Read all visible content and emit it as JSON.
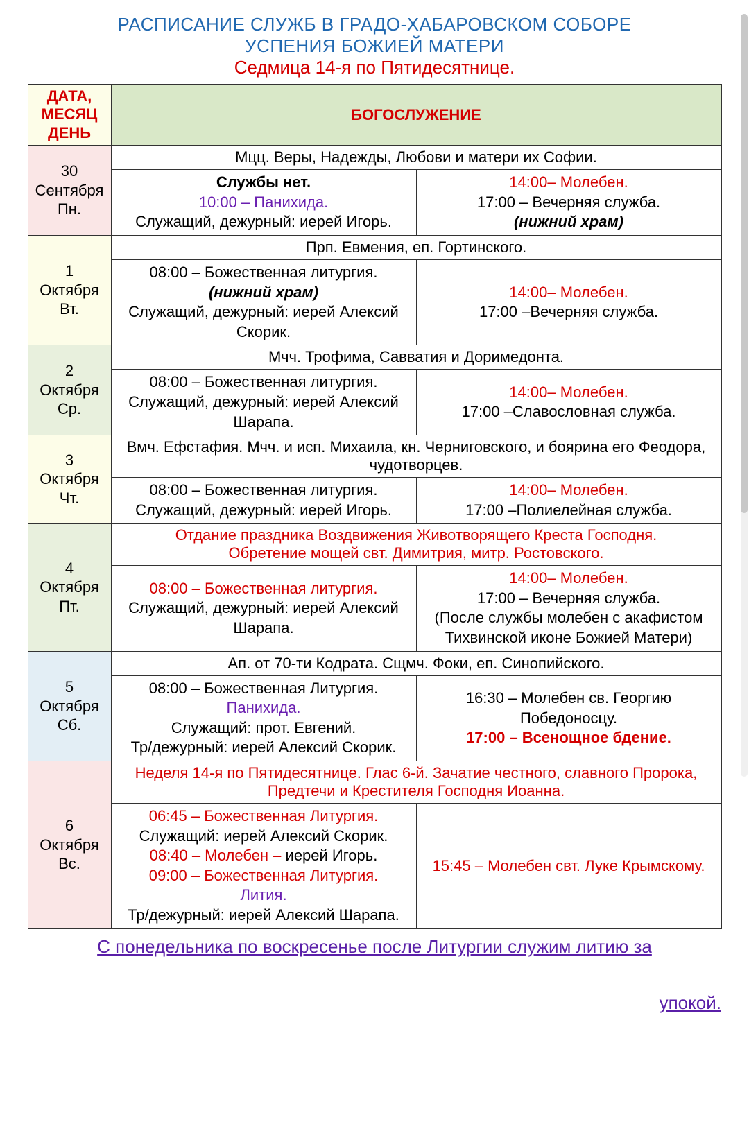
{
  "colors": {
    "title_blue": "#2068b0",
    "red": "#d40000",
    "purple": "#6a1fb0",
    "link_purple": "#5a1fa8",
    "bg_pink": "#fae6e6",
    "bg_cream": "#fdfde8",
    "bg_green": "#e8f0dd",
    "bg_blue": "#e3eef5",
    "header_green": "#d9e8c8",
    "border": "#333333"
  },
  "title": {
    "line1": "РАСПИСАНИЕ СЛУЖБ В ГРАДО-ХАБАРОВСКОМ СОБОРЕ",
    "line2": "УСПЕНИЯ БОЖИЕЙ МАТЕРИ",
    "line3": "Седмица 14-я по Пятидесятнице."
  },
  "header": {
    "date_col": "ДАТА, МЕСЯЦ ДЕНЬ",
    "service_col": "БОГОСЛУЖЕНИЕ"
  },
  "rows": [
    {
      "date_bg": "bg-pink",
      "date_lines": [
        "30",
        "Сентября",
        "Пн."
      ],
      "feast": "Мцц. Веры, Надежды, Любови и матери их Софии.",
      "left": [
        {
          "text": "Службы нет.",
          "cls": "bold"
        },
        {
          "text": "10:00 – Панихида.",
          "cls": "purple"
        },
        {
          "text": "Служащий, дежурный: иерей Игорь.",
          "cls": ""
        }
      ],
      "right": [
        {
          "text": "14:00– Молебен.",
          "cls": "red"
        },
        {
          "text": "17:00 – Вечерняя служба.",
          "cls": ""
        },
        {
          "text": "(нижний храм)",
          "cls": "bold italic"
        }
      ]
    },
    {
      "date_bg": "bg-cream",
      "date_lines": [
        "1",
        "Октября",
        "Вт."
      ],
      "feast": "Прп. Евмения, еп. Гортинского.",
      "left": [
        {
          "text": "08:00 – Божественная литургия.",
          "cls": ""
        },
        {
          "text": "(нижний храм)",
          "cls": "bold italic"
        },
        {
          "text": "Служащий, дежурный: иерей Алексий Скорик.",
          "cls": ""
        }
      ],
      "right": [
        {
          "text": "14:00– Молебен.",
          "cls": "red"
        },
        {
          "text": "17:00 –Вечерняя служба.",
          "cls": ""
        }
      ]
    },
    {
      "date_bg": "bg-green",
      "date_lines": [
        "2",
        "Октября",
        "Ср."
      ],
      "feast": "Мчч. Трофима, Савватия и Доримедонта.",
      "left": [
        {
          "text": "08:00 – Божественная литургия.",
          "cls": ""
        },
        {
          "text": "Служащий, дежурный: иерей Алексий Шарапа.",
          "cls": ""
        }
      ],
      "right": [
        {
          "text": "14:00– Молебен.",
          "cls": "red"
        },
        {
          "text": "17:00 –Славословная служба.",
          "cls": ""
        }
      ]
    },
    {
      "date_bg": "bg-cream",
      "date_lines": [
        "3",
        "Октября",
        "Чт."
      ],
      "feast": "Вмч. Ефстафия. Мчч. и исп. Михаила, кн. Черниговского, и боярина его Феодора, чудотворцев.",
      "left": [
        {
          "text": "08:00 – Божественная литургия.",
          "cls": ""
        },
        {
          "text": "Служащий, дежурный: иерей Игорь.",
          "cls": ""
        }
      ],
      "right": [
        {
          "text": "14:00– Молебен.",
          "cls": "red"
        },
        {
          "text": "17:00 –Полиелейная служба.",
          "cls": ""
        }
      ]
    },
    {
      "date_bg": "bg-green",
      "date_lines": [
        "4",
        "Октября",
        "Пт."
      ],
      "feast_red": true,
      "feast": "Отдание праздника Воздвижения Животворящего Креста Господня.\nОбретение мощей свт. Димитрия, митр. Ростовского.",
      "left": [
        {
          "text": "08:00 – Божественная литургия.",
          "cls": "red"
        },
        {
          "text": "Служащий, дежурный: иерей Алексий Шарапа.",
          "cls": ""
        }
      ],
      "right": [
        {
          "text": "14:00– Молебен.",
          "cls": "red"
        },
        {
          "text": "17:00 – Вечерняя служба.",
          "cls": ""
        },
        {
          "text": "(После службы молебен с акафистом Тихвинской иконе Божией Матери)",
          "cls": ""
        }
      ]
    },
    {
      "date_bg": "bg-blue",
      "date_lines": [
        "5",
        "Октября",
        "Сб."
      ],
      "feast": "Ап. от 70-ти Кодрата. Сщмч. Фоки, еп. Синопийского.",
      "left": [
        {
          "text": "08:00 – Божественная Литургия.",
          "cls": ""
        },
        {
          "text": "Панихида.",
          "cls": "purple"
        },
        {
          "text": "Служащий: прот. Евгений.",
          "cls": ""
        },
        {
          "text": "Тр/дежурный: иерей Алексий Скорик.",
          "cls": ""
        }
      ],
      "right": [
        {
          "text": "16:30 – Молебен св. Георгию Победоносцу.",
          "cls": ""
        },
        {
          "text": "",
          "cls": ""
        },
        {
          "text": "17:00 – Всенощное бдение.",
          "cls": "red bold"
        }
      ]
    },
    {
      "date_bg": "bg-pink",
      "date_lines": [
        "6",
        "Октября",
        "Вс."
      ],
      "feast_red": true,
      "feast": "Неделя 14-я по Пятидесятнице. Глас 6-й. Зачатие честного, славного Пророка, Предтечи и Крестителя Господня Иоанна.",
      "left": [
        {
          "text": "06:45 – Божественная Литургия.",
          "cls": "red"
        },
        {
          "text": "Служащий: иерей Алексий Скорик.",
          "cls": ""
        },
        {
          "prefix": "08:40 – Молебен – ",
          "prefix_cls": "red",
          "text": "иерей Игорь.",
          "cls": ""
        },
        {
          "text": "09:00 – Божественная Литургия.",
          "cls": "red"
        },
        {
          "text": "Лития.",
          "cls": "purple"
        },
        {
          "text": "Тр/дежурный: иерей Алексий Шарапа.",
          "cls": ""
        }
      ],
      "right": [
        {
          "text": "15:45 – Молебен свт. Луке Крымскому.",
          "cls": "red"
        }
      ]
    }
  ],
  "footer": {
    "line1": "С понедельника по воскресенье после Литургии служим литию за",
    "line2": "упокой."
  }
}
